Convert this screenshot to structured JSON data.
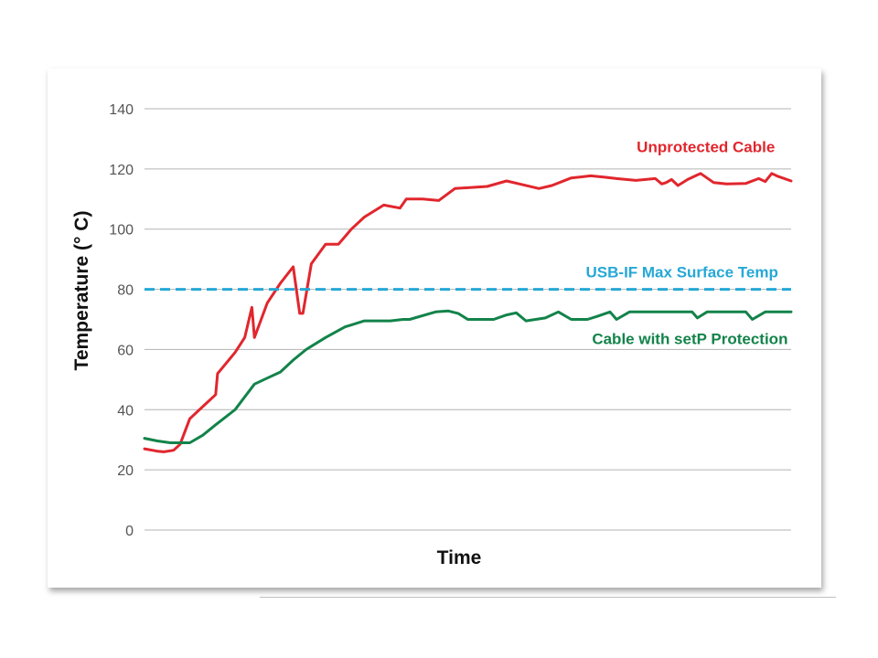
{
  "chart_data": {
    "type": "line",
    "title": "",
    "xlabel": "Time",
    "ylabel": "Temperature (° C)",
    "ylim": [
      0,
      140
    ],
    "yticks": [
      0,
      20,
      40,
      60,
      80,
      100,
      120,
      140
    ],
    "xlim": [
      0,
      100
    ],
    "grid": "horizontal",
    "series": [
      {
        "name": "Unprotected Cable",
        "color": "#e1262d",
        "label_anchor": [
          97.5,
          125.5
        ],
        "x": [
          0,
          2,
          3,
          4.5,
          5.5,
          7,
          9,
          11,
          11.3,
          14,
          15.5,
          16.6,
          17,
          19,
          21,
          23,
          24,
          24.5,
          25.8,
          28,
          30,
          32,
          34,
          37,
          39.5,
          40.5,
          43,
          45.5,
          48,
          53,
          56,
          58,
          61,
          63,
          66,
          69,
          71,
          73,
          76,
          79,
          80,
          80.7,
          81.5,
          82.5,
          84,
          86,
          88,
          90,
          93,
          95,
          96,
          97,
          98,
          100
        ],
        "y": [
          27,
          26.2,
          26,
          26.5,
          28.5,
          37,
          41,
          45,
          52,
          59,
          64,
          74,
          64,
          75.5,
          82,
          87.5,
          72,
          72,
          88.5,
          95,
          95,
          100,
          104,
          108,
          107,
          110,
          110,
          109.5,
          113.5,
          114.2,
          116,
          115,
          113.5,
          114.5,
          117,
          117.7,
          117.3,
          116.8,
          116.2,
          116.8,
          115,
          115.5,
          116.5,
          114.5,
          116.5,
          118.5,
          115.5,
          115,
          115.2,
          116.8,
          115.8,
          118.5,
          117.5,
          116
        ]
      },
      {
        "name": "USB-IF Max Surface Temp",
        "color": "#25a8d6",
        "style": "dashed",
        "label_anchor": [
          98,
          84
        ],
        "x": [
          0,
          100
        ],
        "y": [
          80,
          80
        ]
      },
      {
        "name": "Cable with setP Protection",
        "color": "#12834a",
        "label_anchor": [
          99.5,
          61.8
        ],
        "x": [
          0,
          2,
          4,
          7,
          9,
          11,
          14,
          17,
          19,
          21,
          23,
          25,
          28,
          31,
          34,
          34.5,
          38,
          40,
          41,
          45,
          47,
          48.5,
          50,
          54,
          56,
          57.5,
          59,
          62,
          64,
          66,
          68.5,
          70,
          72,
          73,
          75,
          78,
          80,
          83,
          84.7,
          85.5,
          87,
          89.5,
          91,
          93,
          94,
          96,
          98,
          100
        ],
        "y": [
          30.5,
          29.6,
          29,
          29,
          31.5,
          35,
          40,
          48.5,
          50.5,
          52.5,
          56.5,
          60,
          64,
          67.5,
          69.5,
          69.5,
          69.5,
          70,
          70,
          72.5,
          72.8,
          72,
          70,
          70,
          71.5,
          72.2,
          69.5,
          70.5,
          72.5,
          70,
          70,
          71,
          72.5,
          70,
          72.5,
          72.5,
          72.5,
          72.5,
          72.5,
          70.5,
          72.5,
          72.5,
          72.5,
          72.5,
          70,
          72.5,
          72.5,
          72.5
        ]
      }
    ]
  }
}
